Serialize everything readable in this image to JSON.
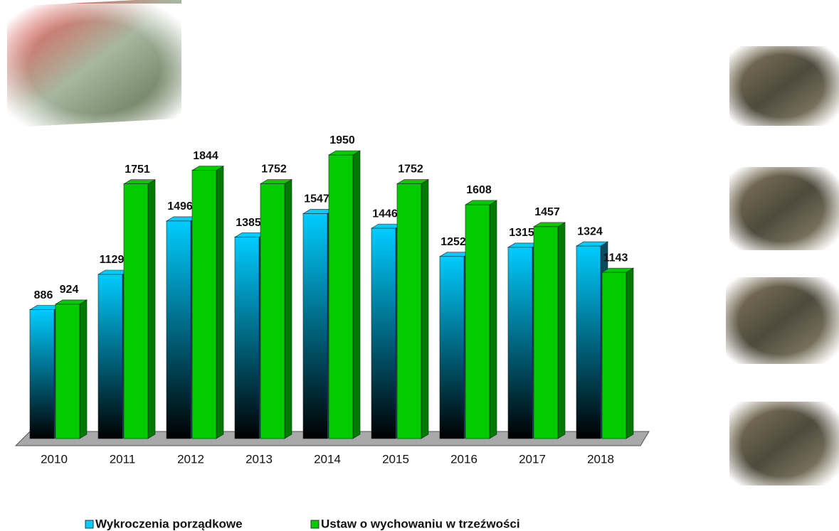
{
  "chart_data": {
    "type": "bar3d",
    "categories": [
      "2010",
      "2011",
      "2012",
      "2013",
      "2014",
      "2015",
      "2016",
      "2017",
      "2018"
    ],
    "series": [
      {
        "name": "Wykroczenia porządkowe",
        "color": "#00ccff",
        "values": [
          886,
          1129,
          1496,
          1385,
          1547,
          1446,
          1252,
          1315,
          1324
        ]
      },
      {
        "name": "Ustaw o wychowaniu w trzeźwości",
        "color": "#00cc00",
        "values": [
          924,
          1751,
          1844,
          1752,
          1950,
          1752,
          1608,
          1457,
          1143
        ]
      }
    ]
  }
}
